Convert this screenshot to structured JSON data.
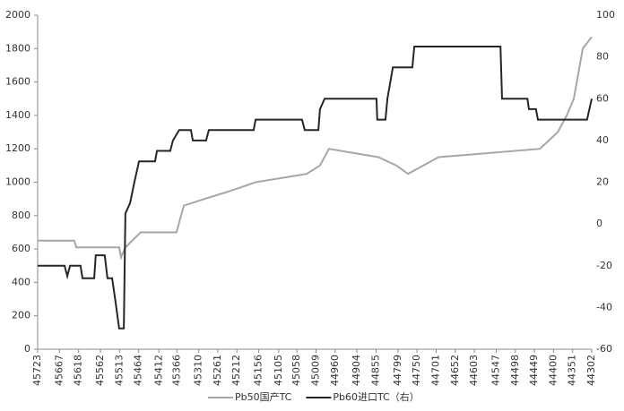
{
  "chart_data": {
    "type": "line",
    "xlim": [
      45723,
      44302
    ],
    "xticks": [
      45723,
      45667,
      45618,
      45562,
      45513,
      45464,
      45412,
      45366,
      45310,
      45261,
      45212,
      45156,
      45105,
      45058,
      45009,
      44960,
      44904,
      44855,
      44799,
      44750,
      44701,
      44652,
      44603,
      44547,
      44498,
      44449,
      44400,
      44351,
      44302
    ],
    "ylim": [
      0,
      2000
    ],
    "yticks": [
      0,
      200,
      400,
      600,
      800,
      1000,
      1200,
      1400,
      1600,
      1800,
      2000
    ],
    "y2lim": [
      -60,
      100
    ],
    "y2ticks": [
      -60,
      -40,
      -20,
      0,
      20,
      40,
      60,
      80,
      100
    ],
    "legend": "bottom",
    "series": [
      {
        "name": "Pb50国产TC",
        "color": "#a6a6a6",
        "x": [
          45723,
          45629,
          45624,
          45514,
          45509,
          45498,
          45459,
          45367,
          45348,
          45295,
          45226,
          45164,
          45033,
          44999,
          44976,
          44849,
          44803,
          44773,
          44695,
          44435,
          44412,
          44389,
          44366,
          44348,
          44325,
          44302
        ],
        "values": [
          650,
          650,
          610,
          610,
          550,
          610,
          700,
          700,
          860,
          900,
          950,
          1000,
          1050,
          1100,
          1200,
          1150,
          1100,
          1050,
          1150,
          1200,
          1250,
          1300,
          1400,
          1500,
          1800,
          1870
        ]
      },
      {
        "name": "Pb60进口TC（右）",
        "color": "#262626",
        "axis": "y2",
        "x": [
          45723,
          45654,
          45647,
          45640,
          45613,
          45608,
          45578,
          45574,
          45551,
          45544,
          45532,
          45525,
          45514,
          45502,
          45498,
          45486,
          45475,
          45463,
          45422,
          45417,
          45383,
          45376,
          45360,
          45330,
          45325,
          45291,
          45284,
          45169,
          45164,
          45045,
          45038,
          45003,
          44999,
          44987,
          44854,
          44852,
          44831,
          44826,
          44812,
          44762,
          44757,
          44536,
          44532,
          44467,
          44463,
          44445,
          44440,
          44314,
          44302
        ],
        "values": [
          -20,
          -20,
          -25,
          -20,
          -20,
          -26,
          -26,
          -15,
          -15,
          -26,
          -26,
          -35,
          -50,
          -50,
          5,
          10,
          20,
          30,
          30,
          35,
          35,
          40,
          45,
          45,
          40,
          40,
          45,
          45,
          50,
          50,
          45,
          45,
          55,
          60,
          60,
          50,
          50,
          60,
          75,
          75,
          85,
          85,
          60,
          60,
          55,
          55,
          50,
          50,
          60
        ]
      }
    ]
  }
}
